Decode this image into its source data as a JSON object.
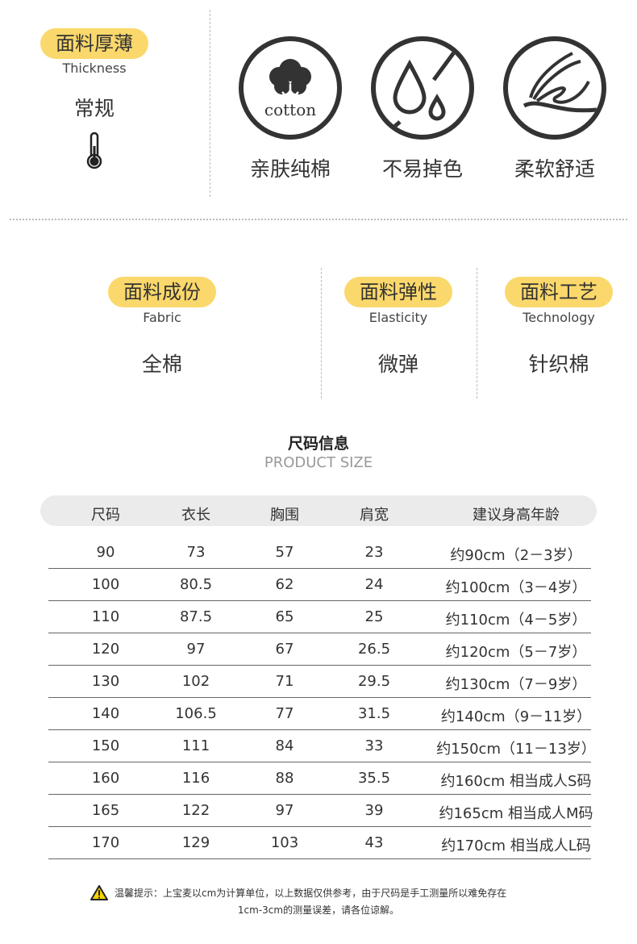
{
  "thickness": {
    "title": "面料厚薄",
    "subtitle": "Thickness",
    "value": "常规",
    "icon": "thermometer-icon"
  },
  "features": [
    {
      "label": "亲肤纯棉",
      "icon": "cotton-icon",
      "logo_text": "cotton"
    },
    {
      "label": "不易掉色",
      "icon": "water-drop-icon"
    },
    {
      "label": "柔软舒适",
      "icon": "feather-icon"
    }
  ],
  "fabric": [
    {
      "title": "面料成份",
      "subtitle": "Fabric",
      "value": "全棉"
    },
    {
      "title": "面料弹性",
      "subtitle": "Elasticity",
      "value": "微弹"
    },
    {
      "title": "面料工艺",
      "subtitle": "Technology",
      "value": "针织棉"
    }
  ],
  "size_section": {
    "title": "尺码信息",
    "subtitle": "PRODUCT SIZE"
  },
  "table": {
    "headers": [
      "尺码",
      "衣长",
      "胸围",
      "肩宽",
      "建议身高年龄"
    ],
    "rows": [
      [
        "90",
        "73",
        "57",
        "23",
        "约90cm（2－3岁）"
      ],
      [
        "100",
        "80.5",
        "62",
        "24",
        "约100cm（3－4岁）"
      ],
      [
        "110",
        "87.5",
        "65",
        "25",
        "约110cm（4－5岁）"
      ],
      [
        "120",
        "97",
        "67",
        "26.5",
        "约120cm（5－7岁）"
      ],
      [
        "130",
        "102",
        "71",
        "29.5",
        "约130cm（7－9岁）"
      ],
      [
        "140",
        "106.5",
        "77",
        "31.5",
        "约140cm（9－11岁）"
      ],
      [
        "150",
        "111",
        "84",
        "33",
        "约150cm（11－13岁）"
      ],
      [
        "160",
        "116",
        "88",
        "35.5",
        "约160cm  相当成人S码"
      ],
      [
        "165",
        "122",
        "97",
        "39",
        "约165cm  相当成人M码"
      ],
      [
        "170",
        "129",
        "103",
        "43",
        "约170cm  相当成人L码"
      ]
    ]
  },
  "notice": {
    "icon": "warning-icon",
    "line1": "温馨提示：上宝麦以cm为计算单位，以上数据仅供参考，由于尺码是手工测量所以难免存在",
    "line2": "1cm-3cm的测量误差，请各位谅解。"
  },
  "colors": {
    "accent": "#fbd86b",
    "header_bg": "#ebebeb",
    "text": "#333333"
  }
}
